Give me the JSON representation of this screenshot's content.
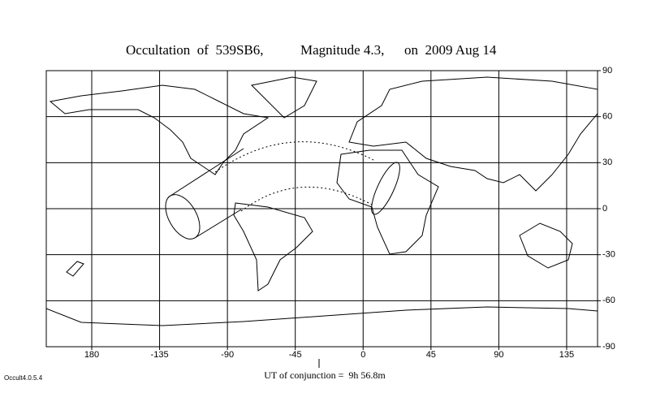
{
  "header": {
    "title_parts": [
      "Occultation  of  539SB6,",
      "Magnitude 4.3,",
      "on  2009 Aug 14"
    ]
  },
  "map": {
    "longitude_ticks": [
      180,
      -135,
      -90,
      -45,
      0,
      45,
      90,
      135
    ],
    "latitude_ticks": [
      90,
      60,
      30,
      0,
      -30,
      -60,
      -90
    ]
  },
  "footer": {
    "conjunction": "UT of conjunction =  9h 56.8m",
    "version": "Occult4.0.5.4"
  }
}
